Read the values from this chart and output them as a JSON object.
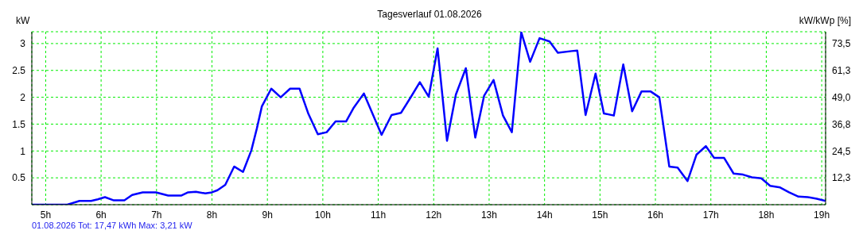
{
  "chart_data": {
    "type": "line",
    "title": "Tagesverlauf 01.08.2026",
    "ylabel": "kW",
    "y2label": "kW/kWp [%]",
    "annotations": [
      "01.08.2026 Tot: 17,47 kWh Max: 3,21 kW"
    ],
    "x": [
      4.75,
      5.39,
      5.61,
      5.82,
      5.94,
      6.07,
      6.23,
      6.42,
      6.56,
      6.75,
      6.99,
      7.21,
      7.45,
      7.57,
      7.71,
      7.88,
      8.0,
      8.1,
      8.24,
      8.4,
      8.56,
      8.71,
      8.81,
      8.9,
      9.07,
      9.24,
      9.41,
      9.58,
      9.74,
      9.91,
      10.07,
      10.23,
      10.42,
      10.56,
      10.74,
      10.91,
      11.06,
      11.24,
      11.41,
      11.58,
      11.75,
      11.91,
      12.07,
      12.24,
      12.4,
      12.58,
      12.75,
      12.91,
      13.08,
      13.25,
      13.41,
      13.58,
      13.74,
      13.91,
      14.09,
      14.24,
      14.49,
      14.59,
      14.74,
      14.92,
      15.07,
      15.25,
      15.42,
      15.58,
      15.75,
      15.91,
      16.07,
      16.25,
      16.4,
      16.58,
      16.74,
      16.91,
      17.06,
      17.24,
      17.41,
      17.58,
      17.74,
      17.91,
      18.07,
      18.25,
      18.41,
      18.58,
      18.75,
      18.91,
      19.07
    ],
    "series": [
      {
        "color": "#0000ff",
        "values": [
          0,
          0,
          0.07,
          0.07,
          0.1,
          0.14,
          0.08,
          0.08,
          0.18,
          0.23,
          0.23,
          0.17,
          0.17,
          0.23,
          0.24,
          0.21,
          0.23,
          0.27,
          0.37,
          0.71,
          0.61,
          1.01,
          1.42,
          1.83,
          2.16,
          2.0,
          2.16,
          2.16,
          1.69,
          1.31,
          1.35,
          1.55,
          1.55,
          1.81,
          2.07,
          1.66,
          1.3,
          1.67,
          1.71,
          1.99,
          2.28,
          2.01,
          2.91,
          1.19,
          2.05,
          2.54,
          1.25,
          2.03,
          2.32,
          1.66,
          1.35,
          3.21,
          2.66,
          3.1,
          3.04,
          2.83,
          2.86,
          2.87,
          1.67,
          2.44,
          1.7,
          1.66,
          2.61,
          1.74,
          2.11,
          2.11,
          2.0,
          0.71,
          0.69,
          0.44,
          0.93,
          1.09,
          0.87,
          0.87,
          0.58,
          0.56,
          0.51,
          0.49,
          0.35,
          0.32,
          0.23,
          0.15,
          0.14,
          0.11,
          0.07
        ]
      }
    ],
    "xlim": [
      4.75,
      19.07
    ],
    "ylim": [
      0,
      3.22
    ],
    "y2lim": [
      0,
      78.9
    ],
    "xticks": [
      {
        "value": 5,
        "label": "5h"
      },
      {
        "value": 6,
        "label": "6h"
      },
      {
        "value": 7,
        "label": "7h"
      },
      {
        "value": 8,
        "label": "8h"
      },
      {
        "value": 9,
        "label": "9h"
      },
      {
        "value": 10,
        "label": "10h"
      },
      {
        "value": 11,
        "label": "11h"
      },
      {
        "value": 12,
        "label": "12h"
      },
      {
        "value": 13,
        "label": "13h"
      },
      {
        "value": 14,
        "label": "14h"
      },
      {
        "value": 15,
        "label": "15h"
      },
      {
        "value": 16,
        "label": "16h"
      },
      {
        "value": 17,
        "label": "17h"
      },
      {
        "value": 18,
        "label": "18h"
      },
      {
        "value": 19,
        "label": "19h"
      }
    ],
    "yticks": [
      0.5,
      1,
      1.5,
      2,
      2.5,
      3
    ],
    "y2ticks": [
      {
        "value": 12.3,
        "label": "12,3"
      },
      {
        "value": 24.5,
        "label": "24,5"
      },
      {
        "value": 36.8,
        "label": "36,8"
      },
      {
        "value": 49,
        "label": "49,0"
      },
      {
        "value": 61.3,
        "label": "61,3"
      },
      {
        "value": 73.5,
        "label": "73,5"
      }
    ],
    "grid": true,
    "legend": false,
    "marker": "none",
    "line_style": "solid"
  }
}
